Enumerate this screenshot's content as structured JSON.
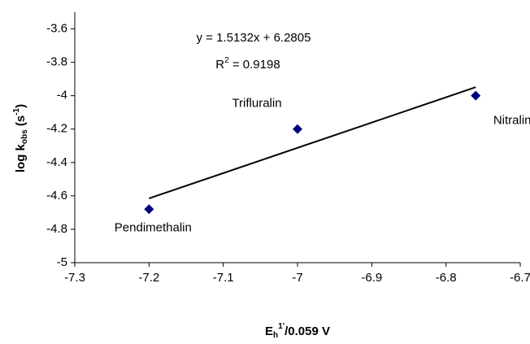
{
  "chart_data": {
    "type": "scatter",
    "x_label": [
      "E",
      "h",
      "1'",
      "/0.059 V"
    ],
    "y_label": [
      "log k",
      "obs",
      " (s",
      "-1",
      ")"
    ],
    "series": [
      {
        "labels": [
          "Pendimethalin",
          "Trifluralin",
          "Nitralin"
        ],
        "color": "#000080",
        "x": [
          -7.2,
          -7.0,
          -6.76
        ],
        "values": [
          -4.68,
          -4.2,
          -4.0
        ]
      }
    ],
    "trendline": {
      "equation": "y = 1.5132x + 6.2805",
      "r2": [
        "R",
        "2",
        " = 0.9198"
      ],
      "color": "#000000",
      "x": [
        -7.2,
        -6.76
      ],
      "values": [
        -4.615,
        -3.949
      ]
    },
    "xlim": [
      -7.3,
      -6.7
    ],
    "xticks": [
      -7.3,
      -7.2,
      -7.1,
      -7,
      -6.9,
      -6.8,
      -6.7
    ],
    "ylim": [
      -5,
      -3.5
    ],
    "yticks": [
      -5,
      -4.8,
      -4.6,
      -4.4,
      -4.2,
      -4,
      -3.8,
      -3.6
    ],
    "grid": false
  }
}
